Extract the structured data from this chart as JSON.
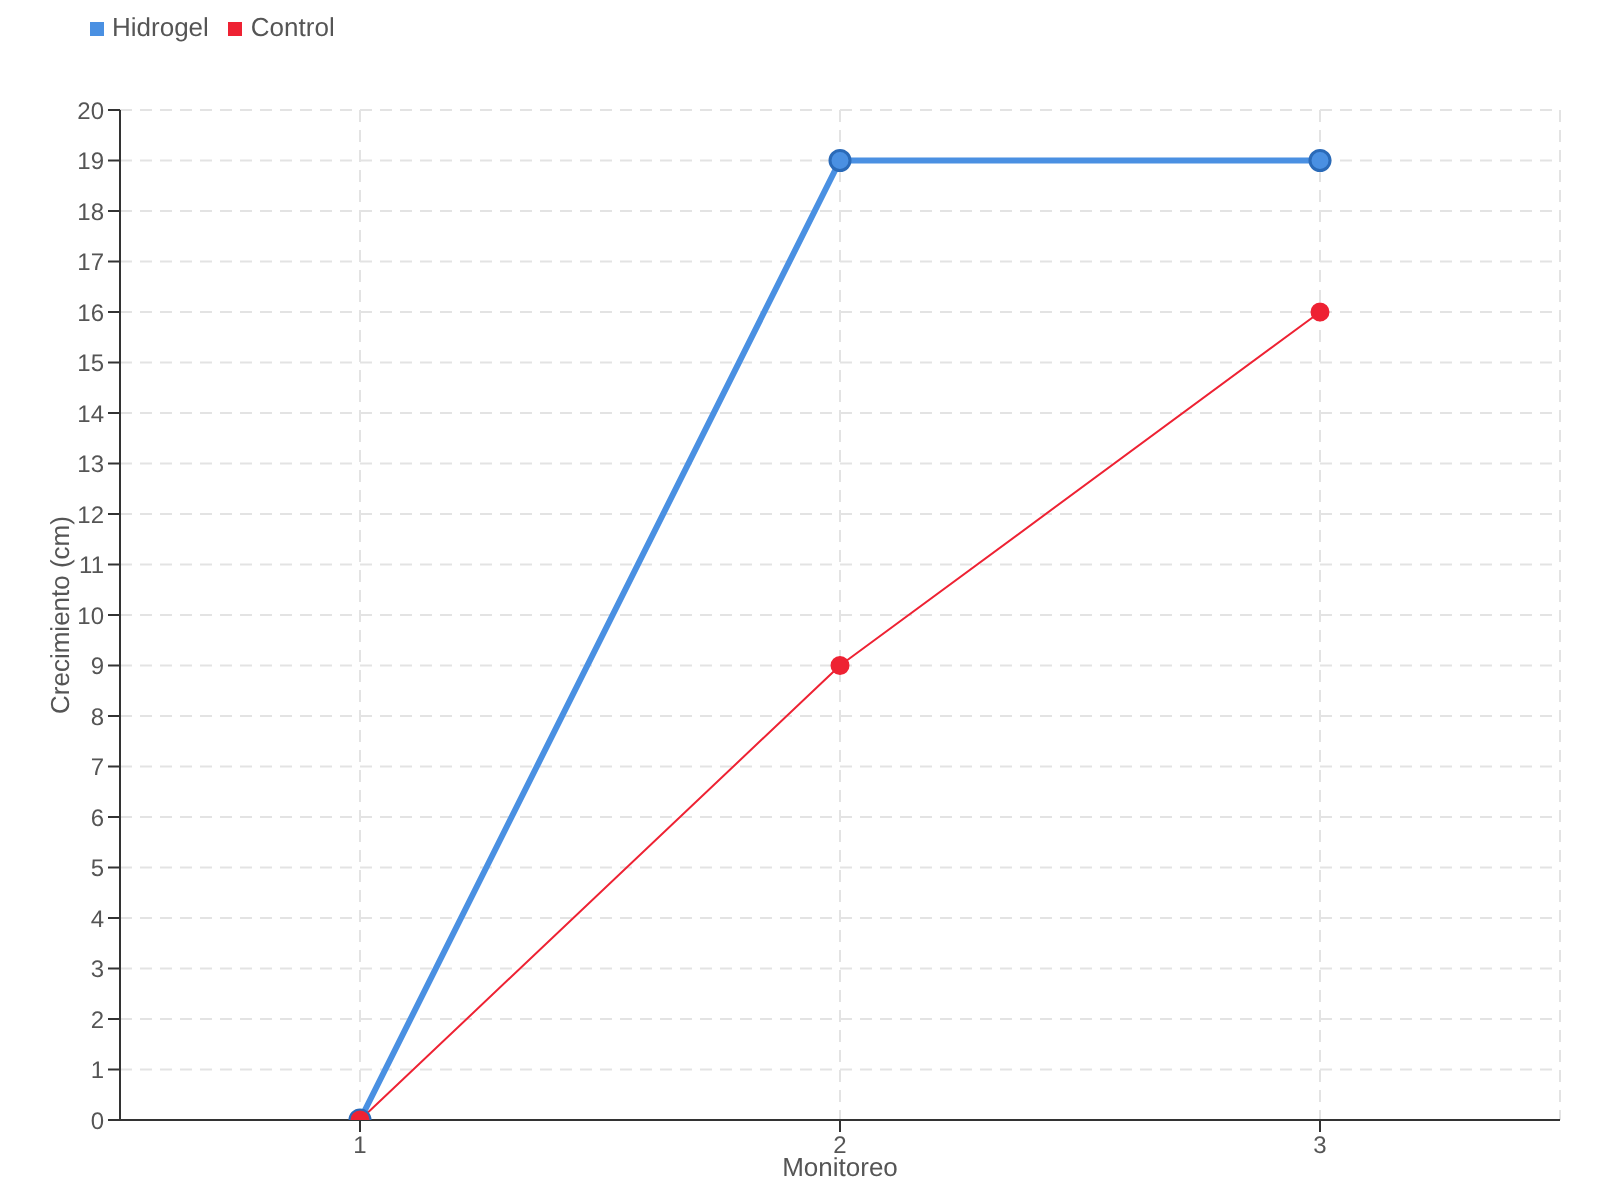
{
  "chart_data": {
    "type": "line",
    "xlabel": "Monitoreo",
    "ylabel": "Crecimiento (cm)",
    "categories": [
      "1",
      "2",
      "3"
    ],
    "series": [
      {
        "name": "Hidrogel",
        "color": "#4a90e2",
        "values": [
          0,
          19,
          19
        ]
      },
      {
        "name": "Control",
        "color": "#ee2233",
        "values": [
          0,
          9,
          16
        ]
      }
    ],
    "ylim": [
      0,
      20
    ],
    "yticks": [
      0,
      1,
      2,
      3,
      4,
      5,
      6,
      7,
      8,
      9,
      10,
      11,
      12,
      13,
      14,
      15,
      16,
      17,
      18,
      19,
      20
    ],
    "grid": true,
    "legend": "top left",
    "marker": "circle",
    "line_style": "solid"
  }
}
